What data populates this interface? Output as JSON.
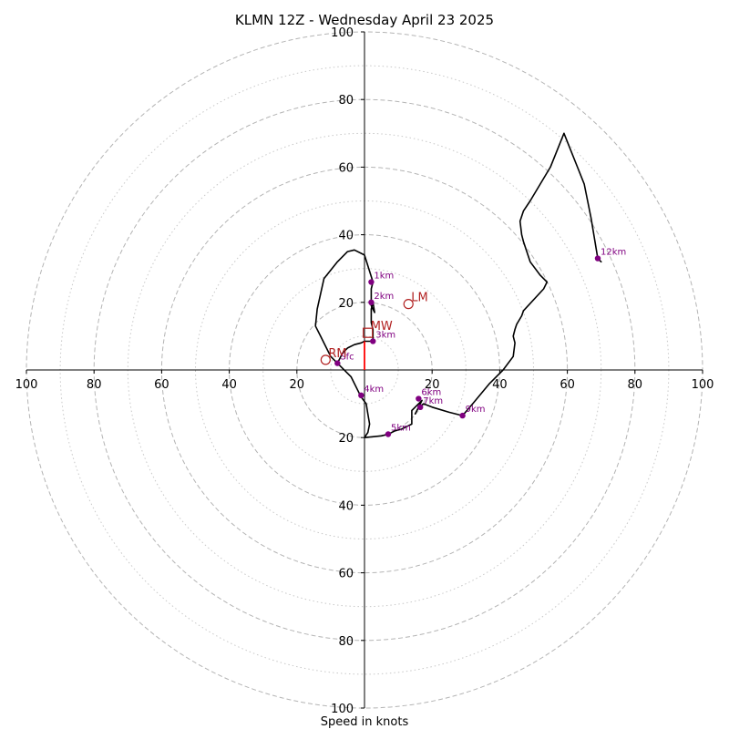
{
  "chart_data": {
    "type": "line",
    "title": "KLMN 12Z - Wednesday April 23 2025",
    "xlabel": "Speed in knots",
    "ylabel": "",
    "xlim": [
      -100,
      100
    ],
    "ylim": [
      -100,
      100
    ],
    "rings_dashed": [
      20,
      40,
      60,
      80,
      100
    ],
    "rings_dotted": [
      10,
      30,
      50,
      70,
      90
    ],
    "tick_values": [
      100,
      80,
      60,
      40,
      20
    ],
    "hodograph_color": "#000000",
    "trace": [
      [
        -8,
        2
      ],
      [
        -7.5,
        3
      ],
      [
        -6.5,
        5
      ],
      [
        -5,
        6.5
      ],
      [
        -3,
        7.5
      ],
      [
        -1,
        8
      ],
      [
        0,
        8.5
      ],
      [
        2,
        8.5
      ],
      [
        2.5,
        9
      ],
      [
        2.5,
        12
      ],
      [
        2,
        14
      ],
      [
        2,
        16
      ],
      [
        2,
        18
      ],
      [
        2.5,
        20
      ],
      [
        3,
        17
      ],
      [
        2,
        19
      ],
      [
        2,
        24
      ],
      [
        2.5,
        26
      ],
      [
        0,
        34
      ],
      [
        -3,
        35.5
      ],
      [
        -5,
        35
      ],
      [
        -8,
        32
      ],
      [
        -12,
        27
      ],
      [
        -14,
        18
      ],
      [
        -14.5,
        13
      ],
      [
        -13,
        10
      ],
      [
        -10,
        4
      ],
      [
        -8,
        2
      ],
      [
        -4,
        -2
      ],
      [
        -2,
        -6
      ],
      [
        -1,
        -8
      ],
      [
        0.5,
        -10
      ],
      [
        1,
        -13
      ],
      [
        1.5,
        -16
      ],
      [
        1,
        -18.5
      ],
      [
        0,
        -20
      ],
      [
        5,
        -19.5
      ],
      [
        7,
        -19
      ],
      [
        9,
        -18
      ],
      [
        11,
        -17.5
      ],
      [
        13,
        -16.5
      ],
      [
        14,
        -16
      ],
      [
        14,
        -12
      ],
      [
        15,
        -11
      ],
      [
        16,
        -10
      ],
      [
        17,
        -9
      ],
      [
        15,
        -13
      ],
      [
        16,
        -11
      ],
      [
        17.5,
        -10
      ],
      [
        20,
        -11
      ],
      [
        25,
        -12.5
      ],
      [
        29,
        -13.5
      ],
      [
        32,
        -10
      ],
      [
        37,
        -4
      ],
      [
        41,
        0
      ],
      [
        44,
        4
      ],
      [
        44.5,
        8
      ],
      [
        44,
        10
      ],
      [
        44.5,
        12
      ],
      [
        45,
        13.5
      ],
      [
        46.5,
        16
      ],
      [
        47,
        17.5
      ],
      [
        53,
        24
      ],
      [
        54,
        26
      ],
      [
        52,
        28
      ],
      [
        49,
        32
      ],
      [
        47,
        38
      ],
      [
        46.5,
        40
      ],
      [
        46,
        44
      ],
      [
        47,
        47
      ],
      [
        49,
        50
      ],
      [
        55,
        60
      ],
      [
        59,
        70
      ],
      [
        65,
        55
      ],
      [
        67,
        45
      ],
      [
        69,
        33
      ],
      [
        70,
        32
      ],
      [
        69,
        33
      ]
    ],
    "shear_vector": {
      "color": "#ff0000",
      "from": [
        0,
        0
      ],
      "to": [
        0,
        8.5
      ]
    },
    "height_markers": [
      {
        "label": "Sfc",
        "u": -8,
        "v": 2
      },
      {
        "label": "1km",
        "u": 2,
        "v": 26
      },
      {
        "label": "2km",
        "u": 2,
        "v": 20
      },
      {
        "label": "3km",
        "u": 2.5,
        "v": 8.5
      },
      {
        "label": "4km",
        "u": -1,
        "v": -7.5
      },
      {
        "label": "5km",
        "u": 7,
        "v": -19
      },
      {
        "label": "6km",
        "u": 16,
        "v": -8.5
      },
      {
        "label": "7km",
        "u": 16.5,
        "v": -11
      },
      {
        "label": "9km",
        "u": 29,
        "v": -13.5
      },
      {
        "label": "12km",
        "u": 69,
        "v": 33
      }
    ],
    "marker_color": "#800080",
    "motion_color": "#b22222",
    "storm_motions": [
      {
        "label": "RM",
        "u": -11.5,
        "v": 3,
        "shape": "circle"
      },
      {
        "label": "LM",
        "u": 13,
        "v": 19.5,
        "shape": "circle"
      },
      {
        "label": "MW",
        "u": 1,
        "v": 11,
        "shape": "square"
      }
    ]
  }
}
